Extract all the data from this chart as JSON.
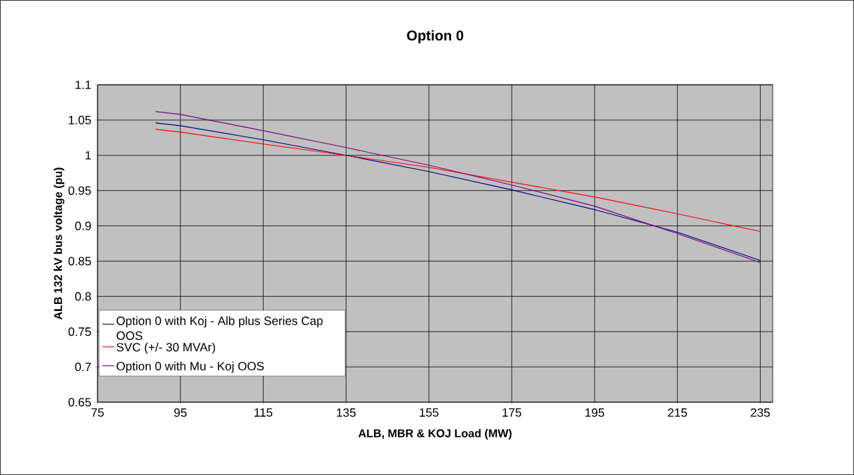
{
  "chart_data": {
    "type": "line",
    "title": "Option 0",
    "xlabel": "ALB, MBR & KOJ  Load (MW)",
    "ylabel": "ALB 132 kV bus voltage (pu)",
    "x": [
      89,
      95,
      115,
      135,
      155,
      175,
      195,
      215,
      235
    ],
    "series": [
      {
        "name": "Option 0 with Koj - Alb plus Series Cap OOS",
        "color": "#000080",
        "values": [
          1.046,
          1.042,
          1.022,
          1.0,
          0.977,
          0.951,
          0.923,
          0.891,
          0.851
        ]
      },
      {
        "name": "SVC (+/- 30 MVAr)",
        "color": "#ff0000",
        "values": [
          1.037,
          1.033,
          1.016,
          1.0,
          0.983,
          0.962,
          0.941,
          0.917,
          0.892
        ]
      },
      {
        "name": "Option 0 with Mu - Koj OOS",
        "color": "#800080",
        "values": [
          1.062,
          1.058,
          1.035,
          1.011,
          0.986,
          0.958,
          0.928,
          0.889,
          0.848
        ]
      }
    ],
    "xlim": [
      75,
      238
    ],
    "ylim": [
      0.65,
      1.1
    ],
    "xticks": [
      75,
      95,
      115,
      135,
      155,
      175,
      195,
      215,
      235
    ],
    "yticks": [
      0.65,
      0.7,
      0.75,
      0.8,
      0.85,
      0.9,
      0.95,
      1,
      1.05,
      1.1
    ],
    "grid": true,
    "legend": "bottom left",
    "marker": "none",
    "line_style": "solid"
  }
}
